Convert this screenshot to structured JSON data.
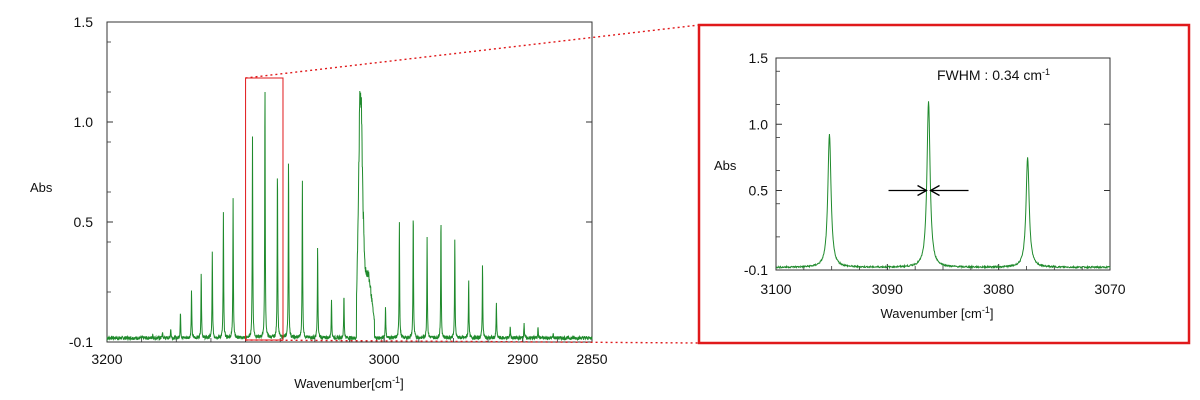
{
  "colors": {
    "trace": "#1f8a2c",
    "highlight": "#e0191b",
    "axis": "#333333"
  },
  "chart_data": [
    {
      "type": "line",
      "x_reversed": true,
      "xlim": [
        3200,
        2850
      ],
      "ylim": [
        -0.1,
        1.5
      ],
      "xlabel": "Wavenumber[cm",
      "xlabel_sup": "-1",
      "xlabel_end": "]",
      "ylabel": "Abs",
      "x_ticks": [
        3200,
        3100,
        3000,
        2900,
        2850
      ],
      "x_tick_labels": [
        "3200",
        "3100",
        "3000",
        "2900",
        "2850"
      ],
      "y_ticks": [
        -0.1,
        0.5,
        1.0,
        1.5
      ],
      "y_tick_labels": [
        "-0.1",
        "0.5",
        "1.0",
        "1.5"
      ],
      "grid": false,
      "baseline": -0.08,
      "peaks": [
        {
          "x": 3167,
          "y": -0.06
        },
        {
          "x": 3160,
          "y": -0.05
        },
        {
          "x": 3154,
          "y": -0.03
        },
        {
          "x": 3147,
          "y": 0.05
        },
        {
          "x": 3139,
          "y": 0.16
        },
        {
          "x": 3132,
          "y": 0.26
        },
        {
          "x": 3124,
          "y": 0.35
        },
        {
          "x": 3116,
          "y": 0.55
        },
        {
          "x": 3109,
          "y": 0.62
        },
        {
          "x": 3095,
          "y": 0.93
        },
        {
          "x": 3086,
          "y": 1.2
        },
        {
          "x": 3077,
          "y": 0.78
        },
        {
          "x": 3069,
          "y": 0.82
        },
        {
          "x": 3059,
          "y": 0.72
        },
        {
          "x": 3048,
          "y": 0.38
        },
        {
          "x": 3038,
          "y": 0.12
        },
        {
          "x": 3029,
          "y": 0.14
        },
        {
          "x": 2999,
          "y": 0.08
        },
        {
          "x": 2989,
          "y": 0.51
        },
        {
          "x": 2979,
          "y": 0.56
        },
        {
          "x": 2969,
          "y": 0.43
        },
        {
          "x": 2959,
          "y": 0.52
        },
        {
          "x": 2949,
          "y": 0.42
        },
        {
          "x": 2939,
          "y": 0.22
        },
        {
          "x": 2929,
          "y": 0.29
        },
        {
          "x": 2919,
          "y": 0.1
        },
        {
          "x": 2909,
          "y": -0.02
        },
        {
          "x": 2899,
          "y": 0.0
        },
        {
          "x": 2889,
          "y": -0.02
        },
        {
          "x": 2878,
          "y": -0.06
        }
      ],
      "qbranch": {
        "x_start": 3019,
        "x_end": 3010,
        "y_max": 1.12
      },
      "zoom_region": {
        "x_range": [
          3100,
          3073
        ],
        "y_range": [
          -0.09,
          1.22
        ]
      }
    },
    {
      "type": "line",
      "x_reversed": true,
      "xlim": [
        3100,
        3070
      ],
      "ylim": [
        -0.1,
        1.5
      ],
      "xlabel": "Wavenumber [cm",
      "xlabel_sup": "-1",
      "xlabel_end": "]",
      "ylabel": "Abs",
      "x_ticks": [
        3100,
        3090,
        3080,
        3070
      ],
      "x_tick_labels": [
        "3100",
        "3090",
        "3080",
        "3070"
      ],
      "y_ticks": [
        -0.1,
        0.5,
        1.0,
        1.5
      ],
      "y_tick_labels": [
        "-0.1",
        "0.5",
        "1.0",
        "1.5"
      ],
      "grid": false,
      "baseline": -0.08,
      "peaks": [
        {
          "x": 3095.2,
          "y": 0.93
        },
        {
          "x": 3086.3,
          "y": 1.17
        },
        {
          "x": 3077.4,
          "y": 0.75
        }
      ],
      "annotation": {
        "text": "FWHM : 0.34 cm",
        "sup": "-1",
        "arrow_x": 3086.3,
        "arrow_y": 0.5
      }
    }
  ]
}
